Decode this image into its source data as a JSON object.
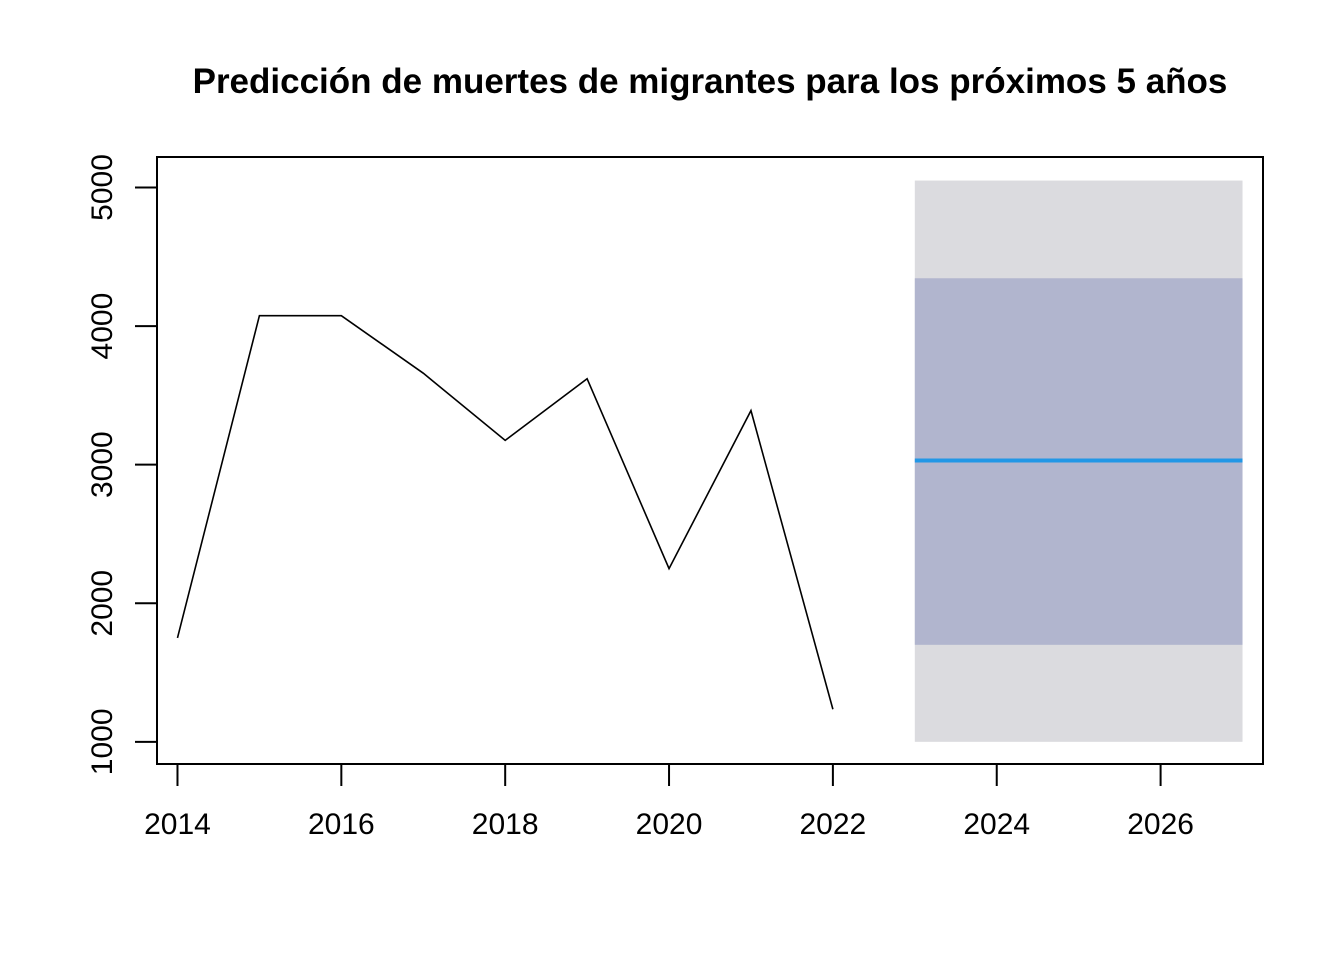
{
  "chart_data": {
    "type": "line",
    "title": "Predicción de muertes de migrantes para los próximos 5 años",
    "xlabel": "",
    "ylabel": "",
    "xlim": [
      2013.75,
      2027.25
    ],
    "ylim": [
      840,
      5220
    ],
    "x_ticks": [
      "2014",
      "2016",
      "2018",
      "2020",
      "2022",
      "2024",
      "2026"
    ],
    "y_ticks": [
      "1000",
      "2000",
      "3000",
      "4000",
      "5000"
    ],
    "series": [
      {
        "role": "observed",
        "color": "#000000",
        "x": [
          2014,
          2015,
          2016,
          2017,
          2018,
          2019,
          2020,
          2021,
          2022
        ],
        "values": [
          1750,
          4075,
          4075,
          3660,
          3175,
          3620,
          2250,
          3390,
          1235
        ]
      }
    ],
    "forecast": {
      "x_range": [
        2023,
        2027
      ],
      "point_forecast": 3030,
      "interval_80": [
        1700,
        4345
      ],
      "interval_95": [
        1000,
        5050
      ],
      "colors": {
        "line": "#2297E6",
        "band_80": "#B1B5CE",
        "band_95": "#DBDBDF"
      }
    },
    "grid": false,
    "legend": "none"
  }
}
